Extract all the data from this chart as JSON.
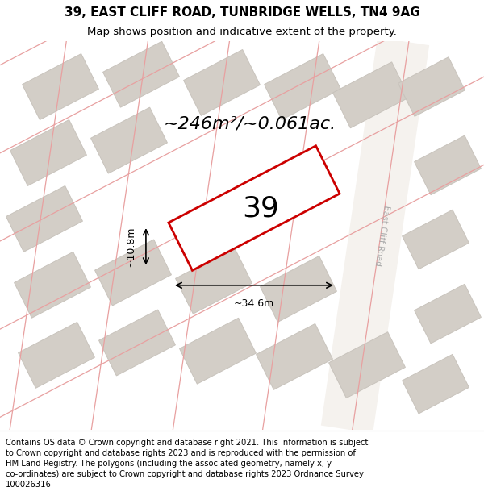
{
  "title": "39, EAST CLIFF ROAD, TUNBRIDGE WELLS, TN4 9AG",
  "subtitle": "Map shows position and indicative extent of the property.",
  "footer": "Contains OS data © Crown copyright and database right 2021. This information is subject\nto Crown copyright and database rights 2023 and is reproduced with the permission of\nHM Land Registry. The polygons (including the associated geometry, namely x, y\nco-ordinates) are subject to Crown copyright and database rights 2023 Ordnance Survey\n100026316.",
  "area_label": "~246m²/~0.061ac.",
  "width_label": "~34.6m",
  "height_label": "~10.8m",
  "property_number": "39",
  "map_bg_color": "#ede9e3",
  "building_fill": "#d3cec7",
  "building_edge": "#c8c3bc",
  "road_fill": "#f5f2ee",
  "road_line_color": "#e8a0a0",
  "highlight_fill": "#ffffff",
  "highlight_outline": "#cc0000",
  "road_label": "East Cliff Road",
  "title_fontsize": 11,
  "subtitle_fontsize": 9.5,
  "footer_fontsize": 7.2,
  "area_fontsize": 16,
  "number_fontsize": 26,
  "dim_fontsize": 9
}
